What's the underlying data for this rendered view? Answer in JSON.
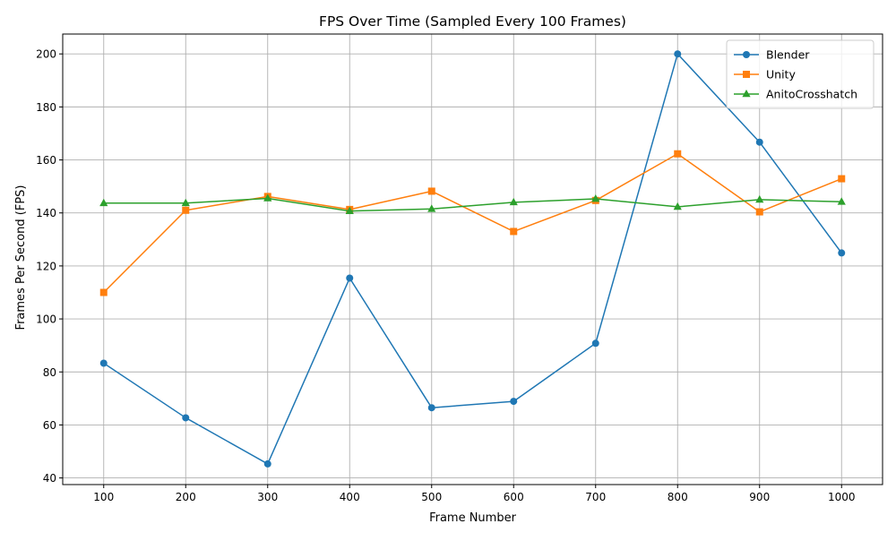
{
  "chart_data": {
    "type": "line",
    "title": "FPS Over Time (Sampled Every 100 Frames)",
    "xlabel": "Frame Number",
    "ylabel": "Frames Per Second (FPS)",
    "x": [
      100,
      200,
      300,
      400,
      500,
      600,
      700,
      800,
      900,
      1000
    ],
    "xlim": [
      50,
      1050
    ],
    "ylim": [
      37.5,
      207.5
    ],
    "yticks": [
      40,
      60,
      80,
      100,
      120,
      140,
      160,
      180,
      200
    ],
    "grid": true,
    "legend_position": "top-right",
    "series": [
      {
        "name": "Blender",
        "color": "#1f77b4",
        "marker": "circle",
        "values": [
          83.3,
          62.7,
          45.3,
          115.4,
          66.5,
          68.9,
          90.8,
          200.0,
          166.7,
          124.9
        ]
      },
      {
        "name": "Unity",
        "color": "#ff7f0e",
        "marker": "square",
        "values": [
          110.0,
          141.0,
          146.2,
          141.3,
          148.2,
          133.0,
          144.7,
          162.3,
          140.4,
          152.9
        ]
      },
      {
        "name": "AnitoCrosshatch",
        "color": "#2ca02c",
        "marker": "triangle",
        "values": [
          143.7,
          143.7,
          145.5,
          140.7,
          141.5,
          144.0,
          145.3,
          142.3,
          145.0,
          144.2
        ]
      }
    ]
  }
}
